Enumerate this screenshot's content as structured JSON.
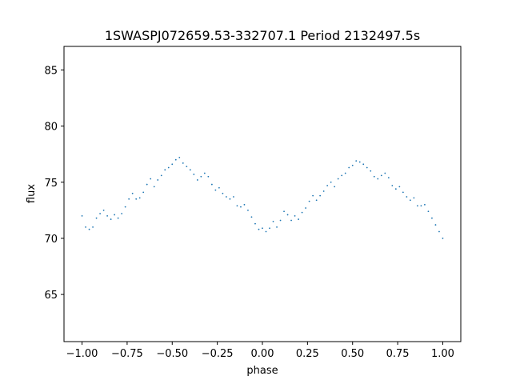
{
  "chart_data": {
    "type": "scatter",
    "title": "1SWASPJ072659.53-332707.1 Period 2132497.5s",
    "xlabel": "phase",
    "ylabel": "flux",
    "xlim": [
      -1.1,
      1.1
    ],
    "ylim": [
      60.8,
      87.1
    ],
    "x_ticks": [
      -1.0,
      -0.75,
      -0.5,
      -0.25,
      0.0,
      0.25,
      0.5,
      0.75,
      1.0
    ],
    "x_tick_labels": [
      "−1.00",
      "−0.75",
      "−0.50",
      "−0.25",
      "0.00",
      "0.25",
      "0.50",
      "0.75",
      "1.00"
    ],
    "y_ticks": [
      65,
      70,
      75,
      80,
      85
    ],
    "y_tick_labels": [
      "65",
      "70",
      "75",
      "80",
      "85"
    ],
    "grid": false,
    "marker": "point",
    "series": [
      {
        "color": "#1f77b4",
        "x": [
          -1.0,
          -0.98,
          -0.96,
          -0.94,
          -0.92,
          -0.9,
          -0.88,
          -0.86,
          -0.84,
          -0.82,
          -0.8,
          -0.78,
          -0.76,
          -0.74,
          -0.72,
          -0.7,
          -0.68,
          -0.66,
          -0.64,
          -0.62,
          -0.6,
          -0.58,
          -0.56,
          -0.54,
          -0.52,
          -0.5,
          -0.48,
          -0.46,
          -0.44,
          -0.42,
          -0.4,
          -0.38,
          -0.36,
          -0.34,
          -0.32,
          -0.3,
          -0.28,
          -0.26,
          -0.24,
          -0.22,
          -0.2,
          -0.18,
          -0.16,
          -0.14,
          -0.12,
          -0.1,
          -0.08,
          -0.06,
          -0.04,
          -0.02,
          0.0,
          0.02,
          0.04,
          0.06,
          0.08,
          0.1,
          0.12,
          0.14,
          0.16,
          0.18,
          0.2,
          0.22,
          0.24,
          0.26,
          0.28,
          0.3,
          0.32,
          0.34,
          0.36,
          0.38,
          0.4,
          0.42,
          0.44,
          0.46,
          0.48,
          0.5,
          0.52,
          0.54,
          0.56,
          0.58,
          0.6,
          0.62,
          0.64,
          0.66,
          0.68,
          0.7,
          0.72,
          0.74,
          0.76,
          0.78,
          0.8,
          0.82,
          0.84,
          0.86,
          0.88,
          0.9,
          0.92,
          0.94,
          0.96,
          0.98,
          1.0
        ],
        "y": [
          72.0,
          71.0,
          70.8,
          71.0,
          71.8,
          72.2,
          72.5,
          72.0,
          71.7,
          72.1,
          71.8,
          72.2,
          72.8,
          73.5,
          74.0,
          73.5,
          73.6,
          74.1,
          74.8,
          75.3,
          74.6,
          75.2,
          75.6,
          76.1,
          76.3,
          76.6,
          77.0,
          77.2,
          76.7,
          76.4,
          76.1,
          75.7,
          75.2,
          75.5,
          75.8,
          75.5,
          74.8,
          74.3,
          74.5,
          74.0,
          73.7,
          73.5,
          73.7,
          72.9,
          72.8,
          73.0,
          72.5,
          71.9,
          71.3,
          70.8,
          70.9,
          70.6,
          70.9,
          71.5,
          71.0,
          71.6,
          72.4,
          72.1,
          71.6,
          72.0,
          71.7,
          72.3,
          72.7,
          73.3,
          73.8,
          73.4,
          73.8,
          74.2,
          74.7,
          75.0,
          74.6,
          75.3,
          75.6,
          75.8,
          76.3,
          76.5,
          76.9,
          76.8,
          76.6,
          76.3,
          76.0,
          75.5,
          75.3,
          75.6,
          75.8,
          75.4,
          74.7,
          74.4,
          74.6,
          74.1,
          73.7,
          73.4,
          73.6,
          72.9,
          72.9,
          73.0,
          72.4,
          71.8,
          71.2,
          70.6,
          70.0
        ]
      }
    ]
  }
}
